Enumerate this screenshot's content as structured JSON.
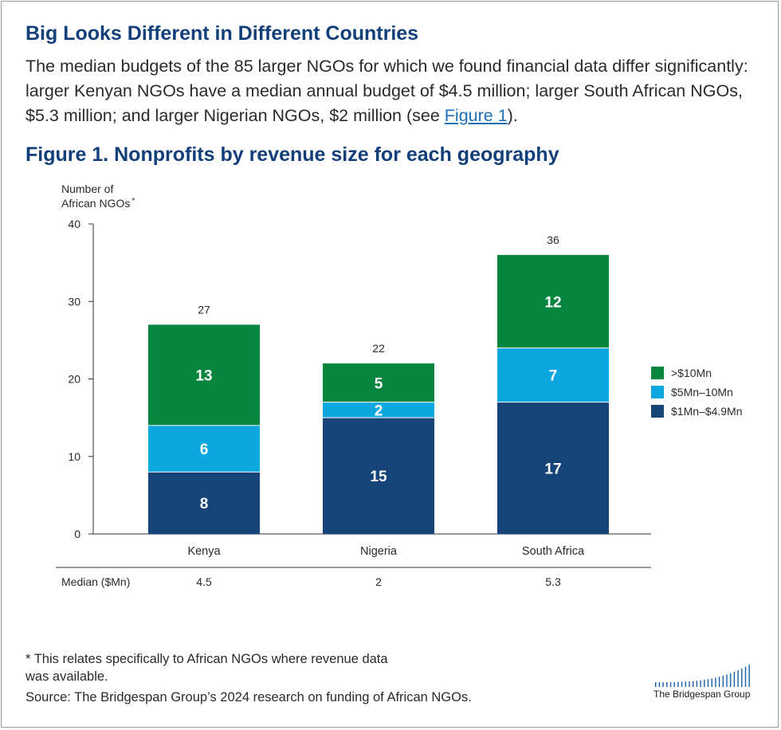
{
  "header": {
    "title": "Big Looks Different in Different Countries",
    "intro_text": "The median budgets of the 85 larger NGOs for which we found financial data differ significantly: larger Kenyan NGOs have a median annual budget of $4.5 million; larger South African NGOs, $5.3 million; and larger Nigerian NGOs, $2 million (see ",
    "intro_link": "Figure 1",
    "intro_end": ")."
  },
  "figure": {
    "title": "Figure 1. Nonprofits by revenue size for each geography"
  },
  "chart_data": {
    "type": "bar",
    "stacked": true,
    "categories": [
      "Kenya",
      "Nigeria",
      "South Africa"
    ],
    "series": [
      {
        "name": "$1Mn–$4.9Mn",
        "values": [
          8,
          15,
          17
        ],
        "color": "#164478"
      },
      {
        "name": "$5Mn–10Mn",
        "values": [
          6,
          2,
          7
        ],
        "color": "#0ca7df"
      },
      {
        "name": ">$10Mn",
        "values": [
          13,
          5,
          12
        ],
        "color": "#05853e"
      }
    ],
    "totals": [
      27,
      22,
      36
    ],
    "ylabel_line1": "Number of",
    "ylabel_line2": "African NGOs",
    "ylabel_mark": "*",
    "ylim": [
      0,
      40
    ],
    "yticks": [
      0,
      10,
      20,
      30,
      40
    ],
    "legend_position": "right",
    "median": {
      "label": "Median ($Mn)",
      "values": [
        "4.5",
        "2",
        "5.3"
      ]
    }
  },
  "footer": {
    "note_line1": "* This relates specifically to African NGOs where revenue data",
    "note_line2": "was available.",
    "source": "Source: The Bridgespan Group’s 2024 research on funding of African NGOs.",
    "brand": "The Bridgespan Group"
  },
  "colors": {
    "title": "#123f7a",
    "text": "#2a2a2a"
  }
}
